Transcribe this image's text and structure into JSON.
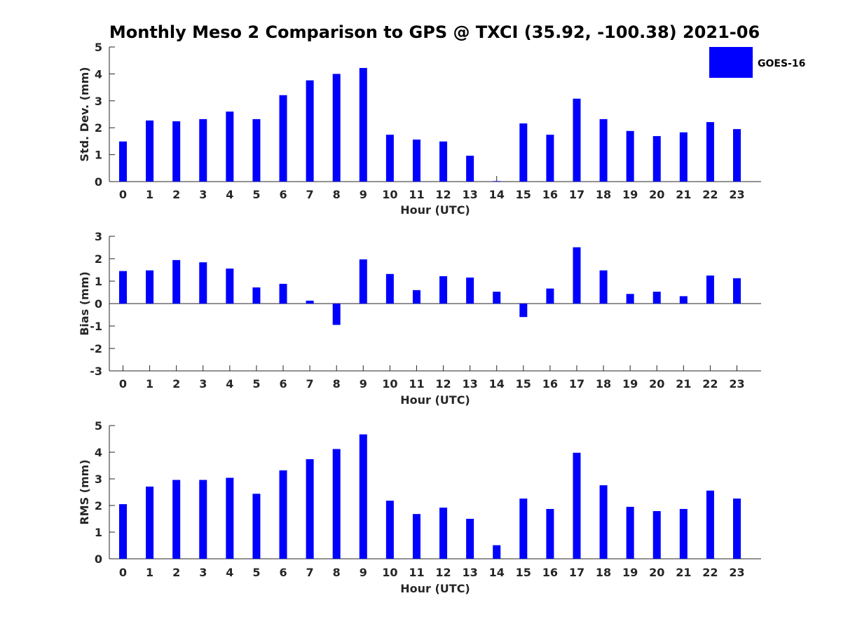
{
  "title": "Monthly Meso 2 Comparison to GPS @ TXCI (35.92, -100.38) 2021-06",
  "legend": {
    "label": "GOES-16",
    "color": "#0000ff",
    "placement": "top-right"
  },
  "chart_data": [
    {
      "type": "bar",
      "xlabel": "Hour (UTC)",
      "ylabel": "Std. Dev. (mm)",
      "ylim": [
        0,
        5
      ],
      "yticks": [
        0,
        1,
        2,
        3,
        4,
        5
      ],
      "categories": [
        "0",
        "1",
        "2",
        "3",
        "4",
        "5",
        "6",
        "7",
        "8",
        "9",
        "10",
        "11",
        "12",
        "13",
        "14",
        "15",
        "16",
        "17",
        "18",
        "19",
        "20",
        "21",
        "22",
        "23"
      ],
      "series": [
        {
          "name": "GOES-16",
          "values": [
            1.49,
            2.27,
            2.24,
            2.32,
            2.6,
            2.32,
            3.21,
            3.76,
            4.0,
            4.22,
            1.74,
            1.56,
            1.49,
            0.96,
            0.02,
            2.16,
            1.74,
            3.08,
            2.32,
            1.88,
            1.69,
            1.83,
            2.21,
            1.95
          ]
        }
      ],
      "grid": false
    },
    {
      "type": "bar",
      "xlabel": "Hour (UTC)",
      "ylabel": "Bias (mm)",
      "ylim": [
        -3,
        3
      ],
      "yticks": [
        -3,
        -2,
        -1,
        0,
        1,
        2,
        3
      ],
      "categories": [
        "0",
        "1",
        "2",
        "3",
        "4",
        "5",
        "6",
        "7",
        "8",
        "9",
        "10",
        "11",
        "12",
        "13",
        "14",
        "15",
        "16",
        "17",
        "18",
        "19",
        "20",
        "21",
        "22",
        "23"
      ],
      "series": [
        {
          "name": "GOES-16",
          "values": [
            1.45,
            1.48,
            1.94,
            1.84,
            1.56,
            0.72,
            0.88,
            0.13,
            -0.95,
            1.97,
            1.32,
            0.6,
            1.22,
            1.16,
            0.53,
            -0.6,
            0.67,
            2.51,
            1.48,
            0.43,
            0.53,
            0.33,
            1.25,
            1.13
          ]
        }
      ],
      "grid": false
    },
    {
      "type": "bar",
      "xlabel": "Hour (UTC)",
      "ylabel": "RMS (mm)",
      "ylim": [
        0,
        5
      ],
      "yticks": [
        0,
        1,
        2,
        3,
        4,
        5
      ],
      "categories": [
        "0",
        "1",
        "2",
        "3",
        "4",
        "5",
        "6",
        "7",
        "8",
        "9",
        "10",
        "11",
        "12",
        "13",
        "14",
        "15",
        "16",
        "17",
        "18",
        "19",
        "20",
        "21",
        "22",
        "23"
      ],
      "series": [
        {
          "name": "GOES-16",
          "values": [
            2.05,
            2.71,
            2.96,
            2.96,
            3.04,
            2.44,
            3.32,
            3.74,
            4.12,
            4.67,
            2.18,
            1.68,
            1.92,
            1.5,
            0.51,
            2.26,
            1.87,
            3.98,
            2.76,
            1.95,
            1.79,
            1.87,
            2.56,
            2.26
          ]
        }
      ],
      "grid": false
    }
  ]
}
